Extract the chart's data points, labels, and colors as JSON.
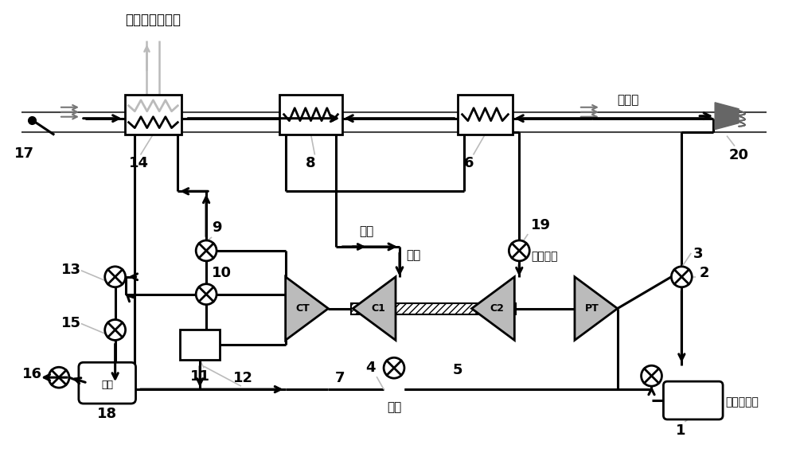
{
  "bg_color": "#ffffff",
  "line_color": "#000000",
  "gray_color": "#888888",
  "light_gray": "#bbbbbb",
  "dark_gray": "#555555",
  "labels": {
    "top_label": "冷却设备载冷剂",
    "17": "17",
    "14": "14",
    "8": "8",
    "6": "6",
    "20": "20",
    "cold_duct": "冷风道",
    "huifeng": "回风",
    "9": "9",
    "10": "10",
    "11": "11",
    "12": "12",
    "7": "7",
    "CT": "CT",
    "C1": "C1",
    "C2": "C2",
    "PT": "PT",
    "13": "13",
    "15": "15",
    "16": "16",
    "paichi": "排出",
    "18": "18",
    "cold_road": "冷路",
    "hot_road": "热路",
    "4": "4",
    "5": "5",
    "19": "19",
    "ram_air": "冲压空气",
    "3": "3",
    "2": "2",
    "1": "1",
    "engine_bleed": "发动机引气"
  }
}
